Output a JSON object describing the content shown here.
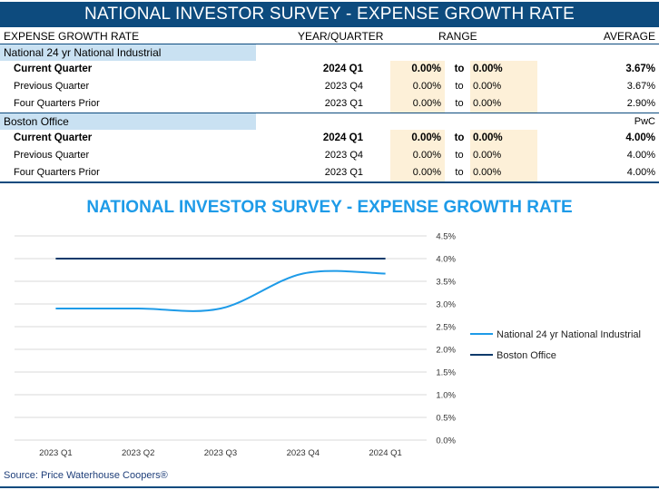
{
  "title": "NATIONAL INVESTOR SURVEY - EXPENSE GROWTH RATE",
  "headers": {
    "label": "EXPENSE GROWTH RATE",
    "year_quarter": "YEAR/QUARTER",
    "range": "RANGE",
    "average": "AVERAGE"
  },
  "groups": [
    {
      "name": "National 24 yr National Industrial",
      "note": "",
      "rows": [
        {
          "label": "Current Quarter",
          "period": "2024 Q1",
          "low": "0.00%",
          "to": "to",
          "high": "0.00%",
          "average": "3.67%"
        },
        {
          "label": "Previous Quarter",
          "period": "2023 Q4",
          "low": "0.00%",
          "to": "to",
          "high": "0.00%",
          "average": "3.67%"
        },
        {
          "label": "Four Quarters Prior",
          "period": "2023 Q1",
          "low": "0.00%",
          "to": "to",
          "high": "0.00%",
          "average": "2.90%"
        }
      ]
    },
    {
      "name": "Boston Office",
      "note": "PwC",
      "rows": [
        {
          "label": "Current Quarter",
          "period": "2024 Q1",
          "low": "0.00%",
          "to": "to",
          "high": "0.00%",
          "average": "4.00%"
        },
        {
          "label": "Previous Quarter",
          "period": "2023 Q4",
          "low": "0.00%",
          "to": "to",
          "high": "0.00%",
          "average": "4.00%"
        },
        {
          "label": "Four Quarters Prior",
          "period": "2023 Q1",
          "low": "0.00%",
          "to": "to",
          "high": "0.00%",
          "average": "4.00%"
        }
      ]
    }
  ],
  "chart_data": {
    "type": "line",
    "title": "NATIONAL INVESTOR SURVEY - EXPENSE GROWTH RATE",
    "categories": [
      "2023 Q1",
      "2023 Q2",
      "2023 Q3",
      "2023 Q4",
      "2024 Q1"
    ],
    "y_ticks": [
      "0.0%",
      "0.5%",
      "1.0%",
      "1.5%",
      "2.0%",
      "2.5%",
      "3.0%",
      "3.5%",
      "4.0%",
      "4.5%"
    ],
    "ylim": [
      0,
      4.5
    ],
    "grid": true,
    "legend": "right",
    "series": [
      {
        "name": "National 24 yr National Industrial",
        "values": [
          2.9,
          2.9,
          2.9,
          3.67,
          3.67
        ],
        "color": "#1e9be8",
        "smooth": true
      },
      {
        "name": "Boston Office",
        "values": [
          4.0,
          4.0,
          4.0,
          4.0,
          4.0
        ],
        "color": "#0d3a6b",
        "smooth": false
      }
    ]
  },
  "source": "Source: Price Waterhouse Coopers®"
}
